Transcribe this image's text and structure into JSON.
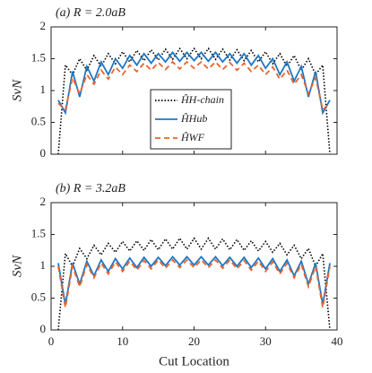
{
  "chart_data": [
    {
      "type": "line",
      "title": "(a) R = 2.0aB",
      "y_label": "SvN",
      "x": [
        1,
        2,
        3,
        4,
        5,
        6,
        7,
        8,
        9,
        10,
        11,
        12,
        13,
        14,
        15,
        16,
        17,
        18,
        19,
        20,
        21,
        22,
        23,
        24,
        25,
        26,
        27,
        28,
        29,
        30,
        31,
        32,
        33,
        34,
        35,
        36,
        37,
        38,
        39
      ],
      "xlim": [
        0,
        40
      ],
      "xticks": [
        0,
        10,
        20,
        30,
        40
      ],
      "ylim": [
        0,
        2
      ],
      "yticks": [
        0,
        0.5,
        1,
        1.5,
        2
      ],
      "legend": "center",
      "series": [
        {
          "name": "ĤH-chain",
          "color": "#000000",
          "dash": "dotted",
          "values": [
            0,
            1.4,
            1.25,
            1.5,
            1.32,
            1.55,
            1.38,
            1.58,
            1.42,
            1.61,
            1.45,
            1.63,
            1.47,
            1.64,
            1.48,
            1.65,
            1.49,
            1.66,
            1.5,
            1.66,
            1.5,
            1.66,
            1.49,
            1.65,
            1.48,
            1.64,
            1.47,
            1.63,
            1.45,
            1.61,
            1.42,
            1.58,
            1.38,
            1.55,
            1.32,
            1.5,
            1.25,
            1.4,
            0
          ]
        },
        {
          "name": "ĤHub",
          "color": "#1f77c4",
          "dash": "solid",
          "values": [
            0.85,
            0.65,
            1.3,
            0.9,
            1.38,
            1.15,
            1.45,
            1.25,
            1.5,
            1.35,
            1.55,
            1.4,
            1.58,
            1.43,
            1.58,
            1.45,
            1.6,
            1.46,
            1.6,
            1.47,
            1.6,
            1.46,
            1.6,
            1.45,
            1.58,
            1.43,
            1.58,
            1.4,
            1.55,
            1.35,
            1.5,
            1.25,
            1.45,
            1.15,
            1.38,
            0.9,
            1.3,
            0.65,
            0.85
          ]
        },
        {
          "name": "ĤWF",
          "color": "#e8642c",
          "dash": "dashed",
          "values": [
            0.8,
            0.7,
            1.2,
            0.95,
            1.25,
            1.1,
            1.32,
            1.18,
            1.37,
            1.25,
            1.4,
            1.3,
            1.43,
            1.32,
            1.44,
            1.33,
            1.45,
            1.34,
            1.45,
            1.35,
            1.45,
            1.34,
            1.45,
            1.33,
            1.44,
            1.32,
            1.43,
            1.3,
            1.4,
            1.25,
            1.37,
            1.18,
            1.32,
            1.1,
            1.25,
            0.95,
            1.2,
            0.7,
            0.8
          ]
        }
      ]
    },
    {
      "type": "line",
      "title": "(b) R = 3.2aB",
      "y_label": "SvN",
      "x_label": "Cut Location",
      "x": [
        1,
        2,
        3,
        4,
        5,
        6,
        7,
        8,
        9,
        10,
        11,
        12,
        13,
        14,
        15,
        16,
        17,
        18,
        19,
        20,
        21,
        22,
        23,
        24,
        25,
        26,
        27,
        28,
        29,
        30,
        31,
        32,
        33,
        34,
        35,
        36,
        37,
        38,
        39
      ],
      "xlim": [
        0,
        40
      ],
      "xticks": [
        0,
        10,
        20,
        30,
        40
      ],
      "ylim": [
        0,
        2
      ],
      "yticks": [
        0,
        0.5,
        1,
        1.5,
        2
      ],
      "series": [
        {
          "color": "#000000",
          "dash": "dotted",
          "values": [
            0,
            1.2,
            1.0,
            1.28,
            1.12,
            1.33,
            1.18,
            1.36,
            1.22,
            1.39,
            1.24,
            1.4,
            1.25,
            1.42,
            1.26,
            1.43,
            1.27,
            1.44,
            1.27,
            1.44,
            1.27,
            1.44,
            1.27,
            1.43,
            1.26,
            1.42,
            1.25,
            1.4,
            1.24,
            1.39,
            1.22,
            1.36,
            1.18,
            1.33,
            1.12,
            1.28,
            1.0,
            1.2,
            0
          ]
        },
        {
          "color": "#1f77c4",
          "dash": "solid",
          "values": [
            1.05,
            0.4,
            1.05,
            0.72,
            1.08,
            0.85,
            1.1,
            0.92,
            1.12,
            0.96,
            1.13,
            0.98,
            1.14,
            1.0,
            1.14,
            1.01,
            1.15,
            1.02,
            1.15,
            1.02,
            1.15,
            1.02,
            1.15,
            1.01,
            1.14,
            1.0,
            1.14,
            0.98,
            1.13,
            0.96,
            1.12,
            0.92,
            1.1,
            0.85,
            1.08,
            0.72,
            1.05,
            0.4,
            1.05
          ]
        },
        {
          "color": "#e8642c",
          "dash": "dashed",
          "values": [
            1.0,
            0.35,
            1.0,
            0.68,
            1.03,
            0.82,
            1.05,
            0.88,
            1.07,
            0.92,
            1.08,
            0.94,
            1.09,
            0.96,
            1.1,
            0.97,
            1.1,
            0.98,
            1.1,
            0.98,
            1.1,
            0.98,
            1.1,
            0.97,
            1.1,
            0.96,
            1.09,
            0.94,
            1.08,
            0.92,
            1.07,
            0.88,
            1.05,
            0.82,
            1.03,
            0.68,
            1.0,
            0.35,
            1.0
          ]
        }
      ]
    }
  ]
}
